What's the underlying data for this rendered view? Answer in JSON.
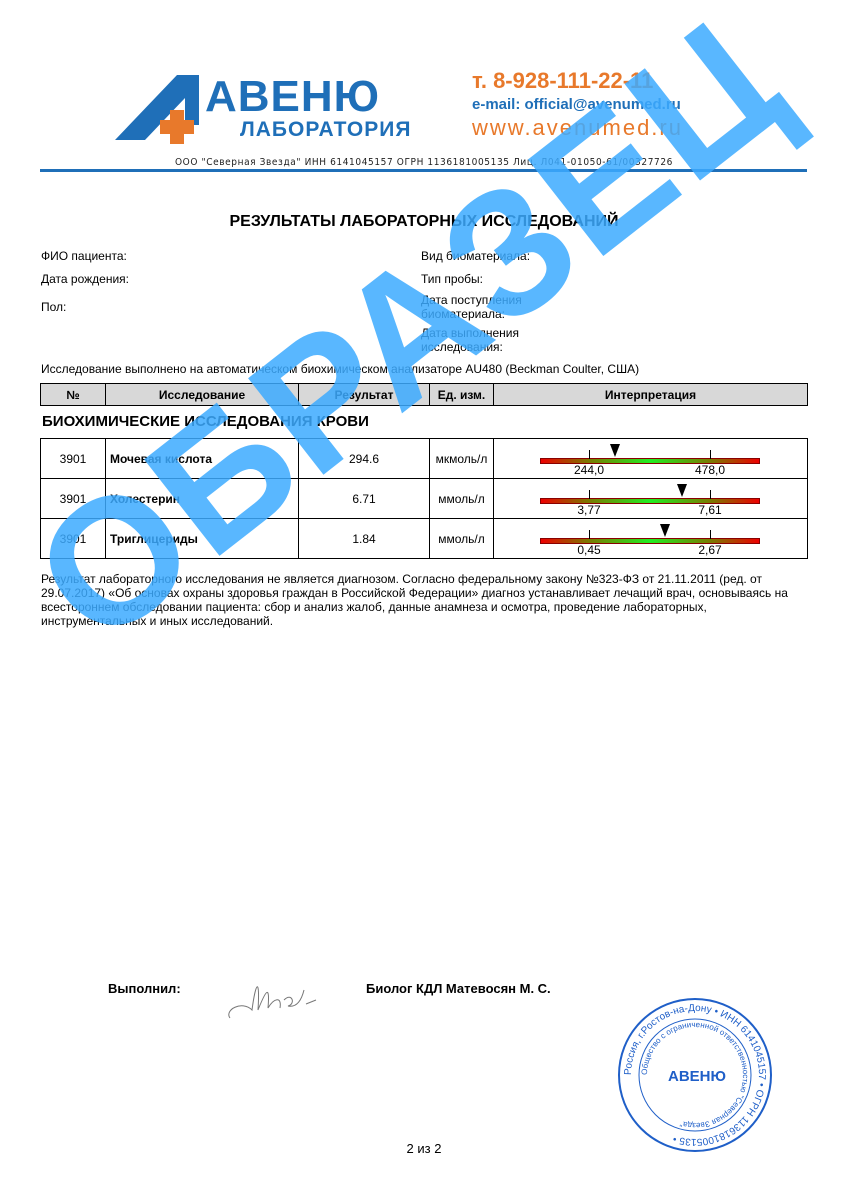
{
  "header": {
    "logo_text": "АВЕНЮ",
    "logo_sub": "ЛАБОРАТОРИЯ",
    "phone": "т. 8-928-111-22-11",
    "email": "e-mail: official@avenumed.ru",
    "website": "www.avenumed.ru",
    "company_line": "ООО \"Северная Звезда\" ИНН 6141045157 ОГРН 1136181005135 Лиц. Л041-01050-61/00327726",
    "colors": {
      "blue": "#1f6fb8",
      "orange": "#e8792b"
    }
  },
  "title": "РЕЗУЛЬТАТЫ ЛАБОРАТОРНЫХ ИССЛЕДОВАНИЙ",
  "patient": {
    "name_label": "ФИО пациента:",
    "dob_label": "Дата рождения:",
    "sex_label": "Пол:",
    "biomaterial_label": "Вид биоматериала:",
    "sample_type_label": "Тип пробы:",
    "received_label": "Дата поступления биоматериала:",
    "performed_label": "Дата выполнения исследования:"
  },
  "analyzer_note": "Исследование выполнено на автоматическом биохимическом анализаторе AU480 (Beckman Coulter, США)",
  "table_headers": [
    "№",
    "Исследование",
    "Результат",
    "Ед. изм.",
    "Интерпретация"
  ],
  "section_title": "БИОХИМИЧЕСКИЕ ИССЛЕДОВАНИЯ КРОВИ",
  "rows": [
    {
      "code": "3901",
      "test": "Мочевая кислота",
      "result": "294.6",
      "unit": "мкмоль/л",
      "low": "244,0",
      "high": "478,0",
      "value": 294.6,
      "low_n": 244.0,
      "high_n": 478.0
    },
    {
      "code": "3901",
      "test": "Холестерин",
      "result": "6.71",
      "unit": "ммоль/л",
      "low": "3,77",
      "high": "7,61",
      "value": 6.71,
      "low_n": 3.77,
      "high_n": 7.61
    },
    {
      "code": "3901",
      "test": "Триглицериды",
      "result": "1.84",
      "unit": "ммоль/л",
      "low": "0,45",
      "high": "2,67",
      "value": 1.84,
      "low_n": 0.45,
      "high_n": 2.67
    }
  ],
  "disclaimer": "Результат лабораторного исследования не является диагнозом. Согласно федеральному закону №323-ФЗ от 21.11.2011 (ред. от 29.07.2017) «Об основах охраны здоровья граждан в Российской Федерации» диагноз устанавливает лечащий врач, основываясь на всестороннем обследовании пациента: сбор и анализ жалоб, данные анамнеза и осмотра, проведение лабораторных, инструментальных и иных исследований.",
  "signature": {
    "performed_label": "Выполнил:",
    "performer": "Биолог КДЛ Матевосян М. С."
  },
  "stamp": {
    "outer": "Россия, г.Ростов-на-Дону • ИНН 6141045157 • ОГРН 1136181005135 •",
    "inner": "Общество с ограниченной ответственностью \"Северная Звезда\"",
    "logo": "АВЕНЮ"
  },
  "watermark": "ОБРАЗЕЦ",
  "page": "2 из 2"
}
